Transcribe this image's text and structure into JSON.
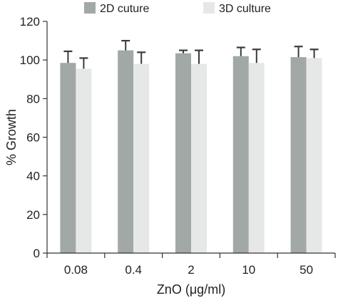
{
  "chart_data": {
    "type": "bar",
    "categories": [
      "0.08",
      "0.4",
      "2",
      "10",
      "50"
    ],
    "series": [
      {
        "name": "2D cuture",
        "color": "#a2a8a6",
        "values": [
          98.5,
          105,
          103.5,
          102,
          101.5
        ],
        "errors": [
          6,
          5,
          1.5,
          4.5,
          5.5
        ]
      },
      {
        "name": "3D culture",
        "color": "#e6e8e7",
        "values": [
          95.5,
          98,
          98,
          98.5,
          101
        ],
        "errors": [
          5.5,
          6,
          7,
          7,
          4.5
        ]
      }
    ],
    "xlabel": "ZnO (μg/ml)",
    "ylabel": "% Growth",
    "ylim": [
      0,
      120
    ],
    "yticks": [
      0,
      20,
      40,
      60,
      80,
      100,
      120
    ],
    "legend": "top",
    "grid": false,
    "error_bar_color": "#3a3a3a",
    "axis_color": "#333333"
  }
}
